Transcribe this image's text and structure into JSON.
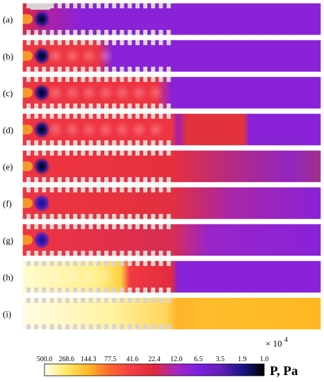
{
  "panels": [
    {
      "label": "(a)",
      "regime": "a"
    },
    {
      "label": "(b)",
      "regime": "b"
    },
    {
      "label": "(c)",
      "regime": "c"
    },
    {
      "label": "(d)",
      "regime": "d"
    },
    {
      "label": "(e)",
      "regime": "e"
    },
    {
      "label": "(f)",
      "regime": "f"
    },
    {
      "label": "(g)",
      "regime": "g"
    },
    {
      "label": "(h)",
      "regime": "h"
    },
    {
      "label": "(i)",
      "regime": "i"
    }
  ],
  "colorbar": {
    "ticks": [
      "500.0",
      "268.6",
      "144.3",
      "77.5",
      "41.6",
      "22.4",
      "12.0",
      "6.5",
      "3.5",
      "1.9",
      "1.0"
    ],
    "multiplier_base": "× 10",
    "multiplier_exp": "4",
    "unit": "P, Pa",
    "colors": [
      "#fffff2",
      "#ffe866",
      "#ffb628",
      "#fb6630",
      "#f33c46",
      "#e0283a",
      "#a626c6",
      "#7f1fe2",
      "#6220b8",
      "#1a158a",
      "#000000"
    ]
  }
}
